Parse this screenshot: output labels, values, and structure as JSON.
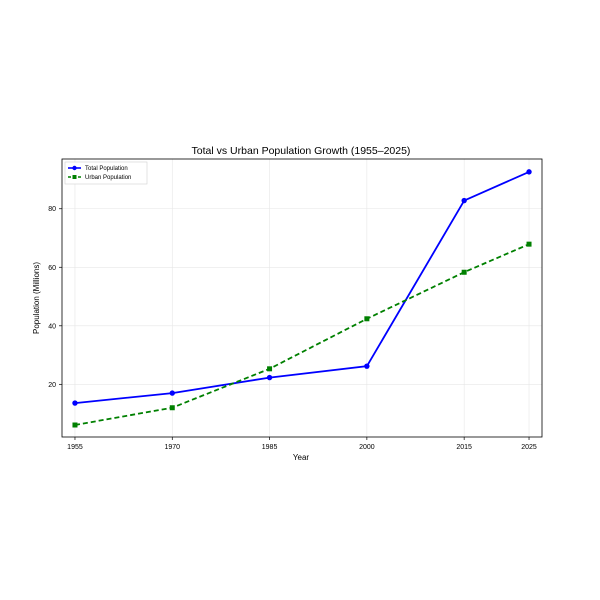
{
  "chart_data": {
    "type": "line",
    "title": "Total vs Urban Population Growth (1955–2025)",
    "xlabel": "Year",
    "ylabel": "Population (Millions)",
    "x": [
      1955,
      1970,
      1985,
      2000,
      2015,
      2025
    ],
    "xticks": [
      "1955",
      "1970",
      "1985",
      "2000",
      "2015",
      "2025"
    ],
    "yticks": [
      "20",
      "40",
      "60",
      "80"
    ],
    "xlim": [
      1953,
      2027
    ],
    "ylim": [
      2,
      97
    ],
    "grid": true,
    "legend_position": "top-left",
    "series": [
      {
        "name": "Total Population",
        "values": [
          13.6,
          17.0,
          22.3,
          26.2,
          82.8,
          92.6
        ],
        "color": "#0000ff",
        "line_style": "solid",
        "marker": "circle"
      },
      {
        "name": "Urban Population",
        "values": [
          6.1,
          12.0,
          25.3,
          42.4,
          58.3,
          67.9
        ],
        "color": "#008000",
        "line_style": "dashed",
        "marker": "square"
      }
    ]
  }
}
